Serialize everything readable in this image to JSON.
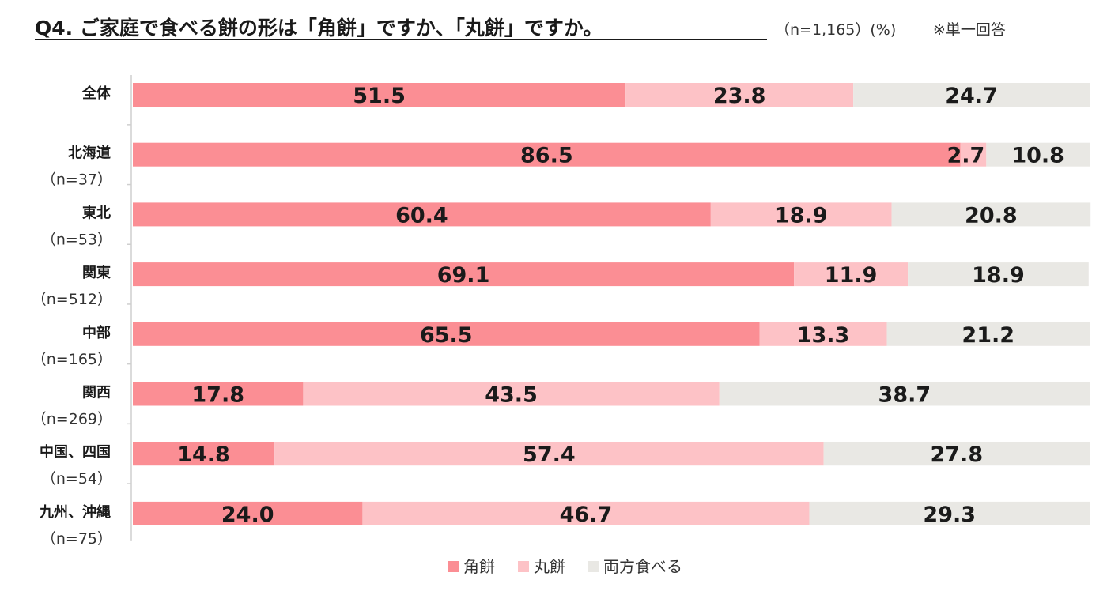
{
  "chart_data": {
    "type": "bar",
    "orientation": "horizontal",
    "stacked": true,
    "title": "Q4. ご家庭で食べる餅の形は「角餅」ですか、「丸餅」ですか。",
    "sample_note": "（n=1,165）(%)",
    "answer_note": "※単一回答",
    "xlim": [
      0,
      100
    ],
    "grid": false,
    "legend_position": "bottom",
    "categories": [
      {
        "label": "全体",
        "n": ""
      },
      {
        "label": "北海道",
        "n": "（n=37）"
      },
      {
        "label": "東北",
        "n": "（n=53）"
      },
      {
        "label": "関東",
        "n": "（n=512）"
      },
      {
        "label": "中部",
        "n": "（n=165）"
      },
      {
        "label": "関西",
        "n": "（n=269）"
      },
      {
        "label": "中国、四国",
        "n": "（n=54）"
      },
      {
        "label": "九州、沖縄",
        "n": "（n=75）"
      }
    ],
    "series": [
      {
        "name": "角餅",
        "color": "#fb8e94",
        "values": [
          51.5,
          86.5,
          60.4,
          69.1,
          65.5,
          17.8,
          14.8,
          24.0
        ]
      },
      {
        "name": "丸餅",
        "color": "#fdc2c6",
        "values": [
          23.8,
          2.7,
          18.9,
          11.9,
          13.3,
          43.5,
          57.4,
          46.7
        ]
      },
      {
        "name": "両方食べる",
        "color": "#e9e8e4",
        "values": [
          24.7,
          10.8,
          20.8,
          18.9,
          21.2,
          38.7,
          27.8,
          29.3
        ]
      }
    ]
  }
}
